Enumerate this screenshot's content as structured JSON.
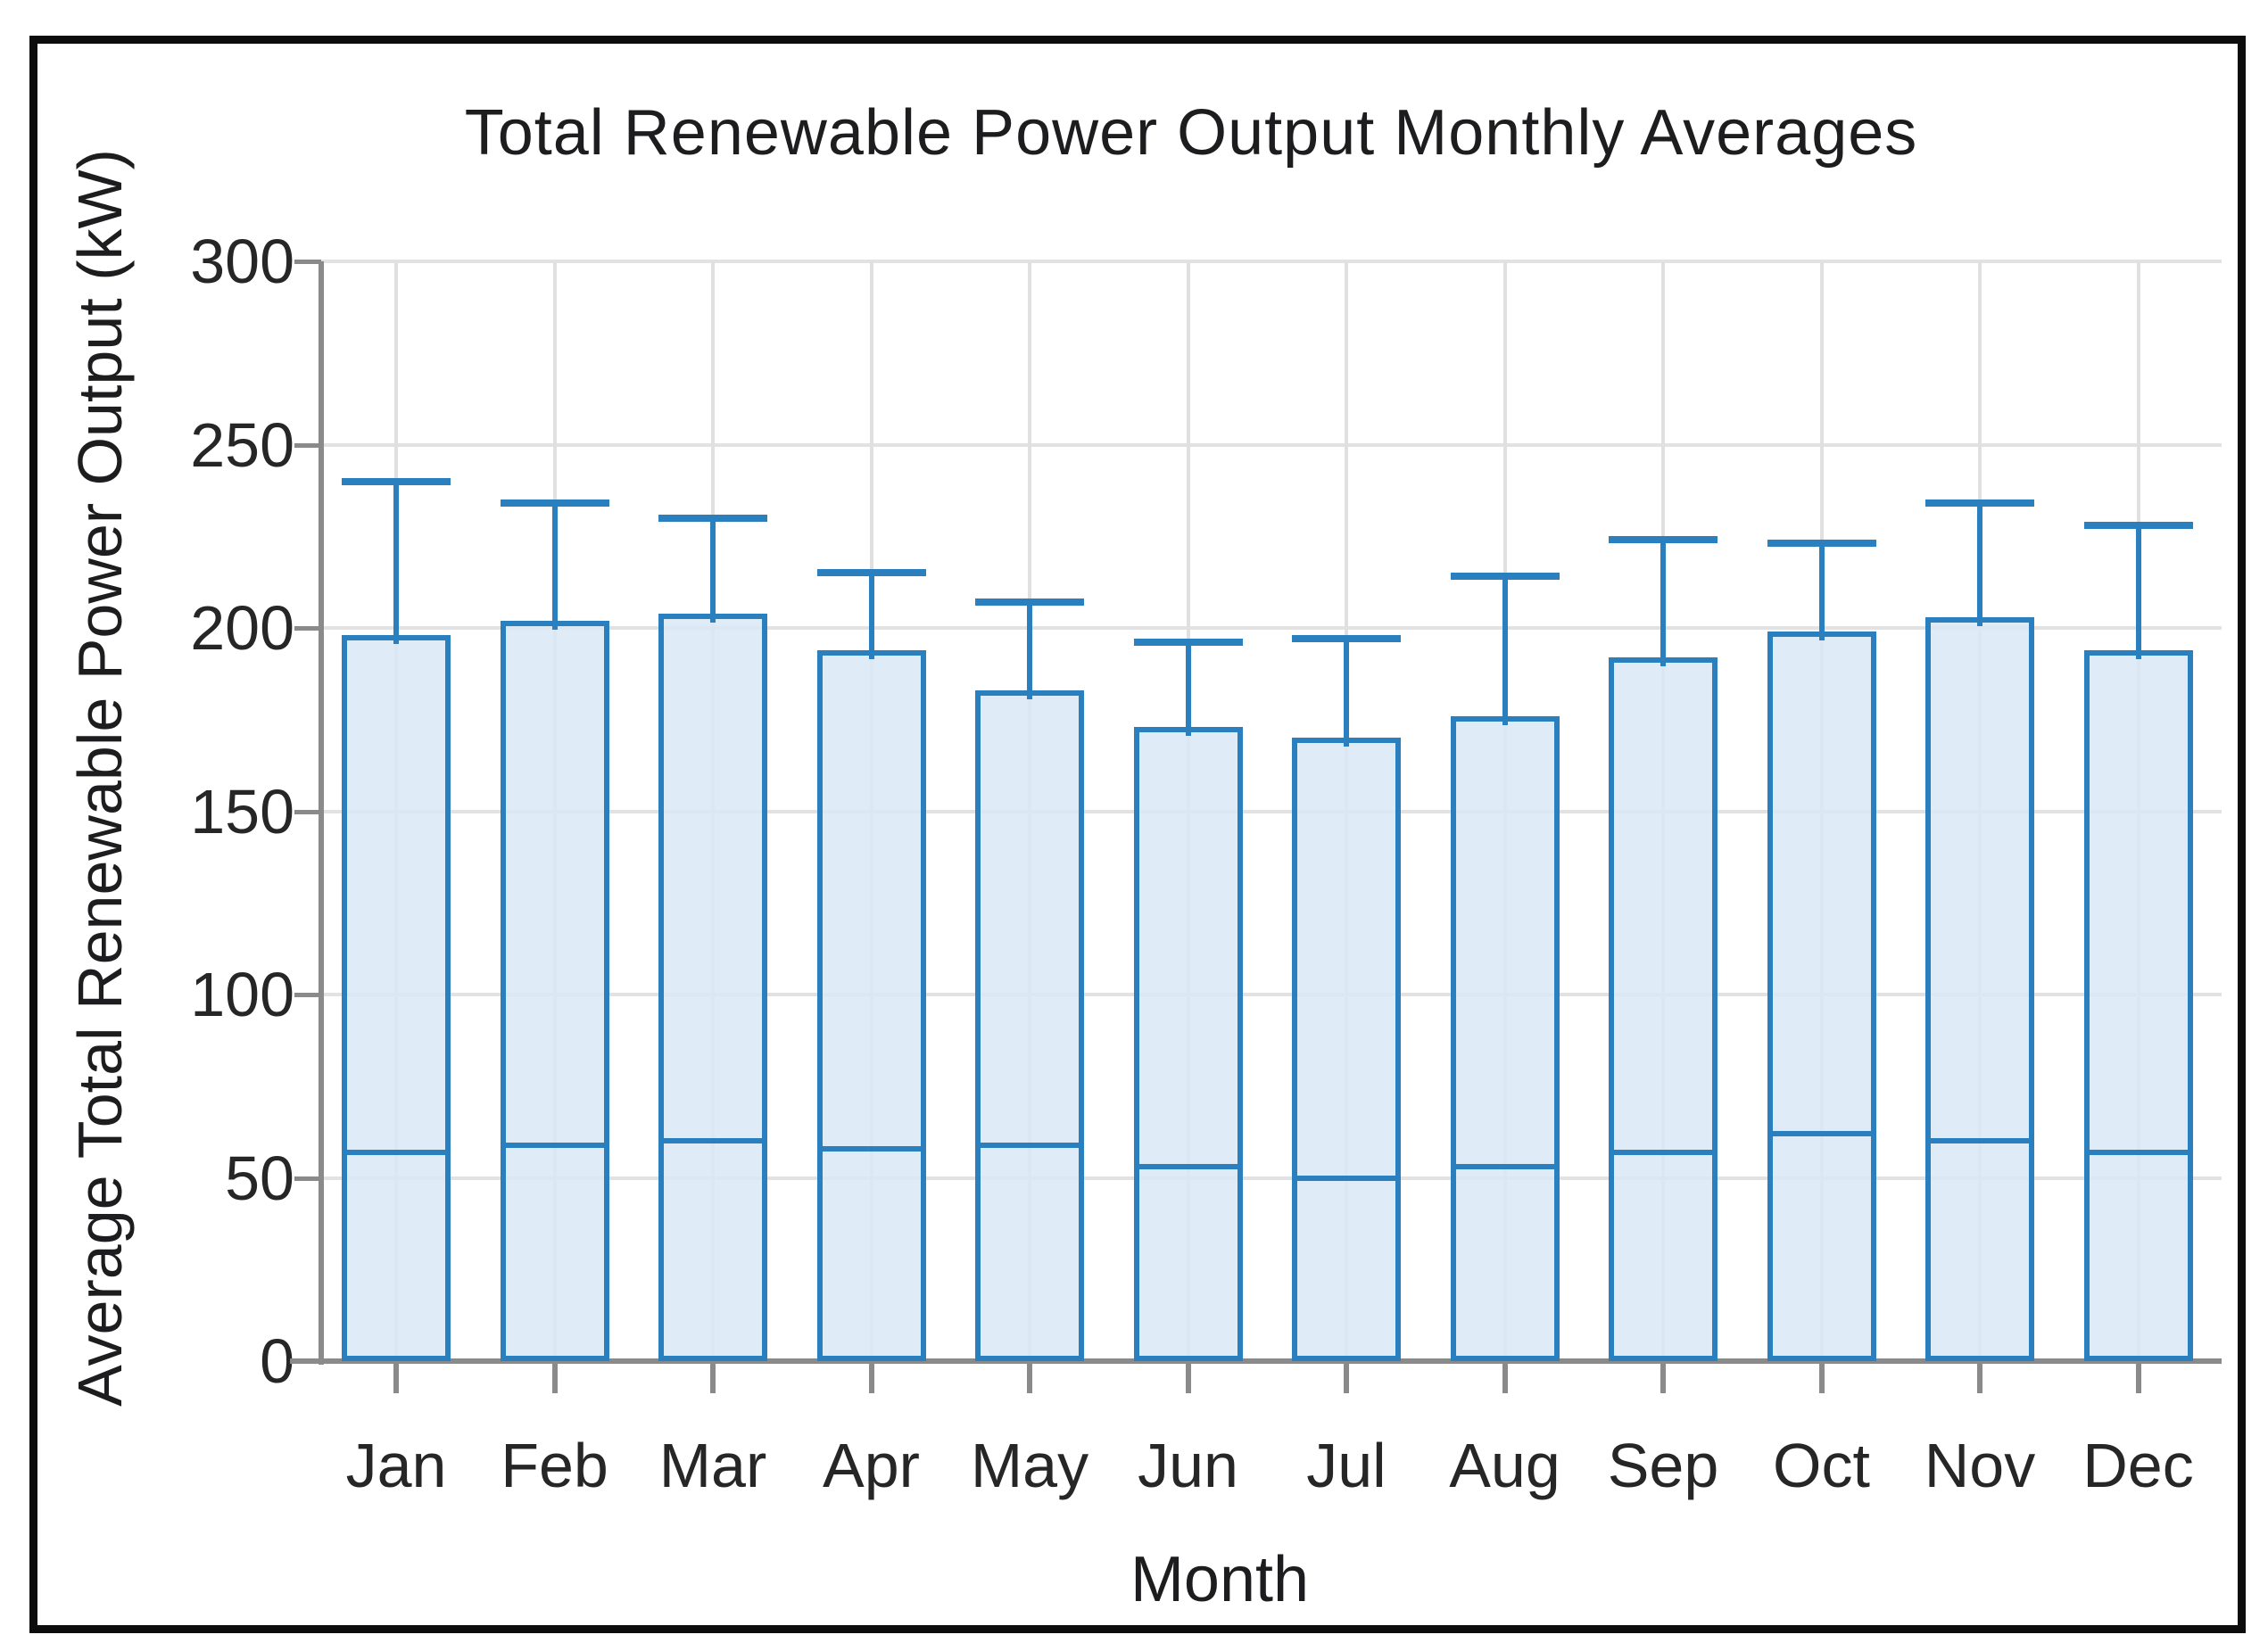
{
  "chart_data": {
    "type": "bar",
    "title": "Total Renewable Power Output Monthly Averages",
    "xlabel": "Month",
    "ylabel": "Average Total Renewable Power Output (kW)",
    "ylim": [
      0,
      300
    ],
    "yticks": [
      0,
      50,
      100,
      150,
      200,
      250,
      300
    ],
    "grid": true,
    "legend": "none",
    "categories": [
      "Jan",
      "Feb",
      "Mar",
      "Apr",
      "May",
      "Jun",
      "Jul",
      "Aug",
      "Sep",
      "Oct",
      "Nov",
      "Dec"
    ],
    "series": [
      {
        "name": "monthly-average-bar",
        "values": [
          198,
          202,
          204,
          194,
          183,
          173,
          170,
          176,
          192,
          199,
          203,
          194
        ]
      },
      {
        "name": "upper-error-cap",
        "values": [
          240,
          234,
          230,
          215,
          207,
          196,
          197,
          214,
          224,
          223,
          234,
          228
        ]
      },
      {
        "name": "inner-marker-line",
        "values": [
          57,
          59,
          60,
          58,
          59,
          53,
          50,
          53,
          57,
          62,
          60,
          57
        ]
      }
    ],
    "colors": {
      "bar_fill": "#d9e9f6",
      "bar_border": "#2a80bf",
      "error_bar": "#2a80bf",
      "gridline": "#e0e0e0",
      "axis": "#8a8a8a",
      "text": "#1d1d1f",
      "frame": "#0c0c0c",
      "background": "#ffffff"
    }
  }
}
